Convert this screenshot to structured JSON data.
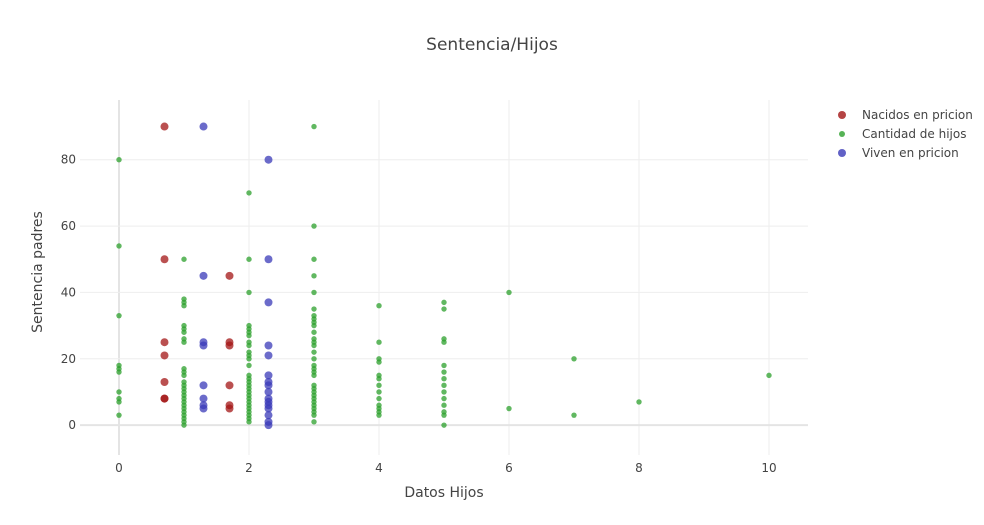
{
  "chart_data": {
    "type": "scatter",
    "title": "Sentencia/Hijos",
    "xlabel": "Datos Hijos",
    "ylabel": "Sentencia padres",
    "xlim": [
      -0.6,
      10.6
    ],
    "ylim": [
      -9,
      98
    ],
    "x_ticks": [
      0,
      2,
      4,
      6,
      8,
      10
    ],
    "y_ticks": [
      0,
      20,
      40,
      60,
      80
    ],
    "grid": true,
    "legend_position": "top-right",
    "series": [
      {
        "name": "Nacidos en pricion",
        "color": "#a31515",
        "marker_size": "large",
        "points": [
          [
            0.7,
            90
          ],
          [
            0.7,
            50
          ],
          [
            0.7,
            25
          ],
          [
            0.7,
            21
          ],
          [
            0.7,
            13
          ],
          [
            0.7,
            8
          ],
          [
            0.7,
            8
          ],
          [
            1.7,
            45
          ],
          [
            1.7,
            25
          ],
          [
            1.7,
            24
          ],
          [
            1.7,
            12
          ],
          [
            1.7,
            6
          ],
          [
            1.7,
            5
          ]
        ]
      },
      {
        "name": "Cantidad de hijos",
        "color": "#2ca02c",
        "marker_size": "small",
        "points": [
          [
            0,
            80
          ],
          [
            0,
            54
          ],
          [
            0,
            33
          ],
          [
            0,
            18
          ],
          [
            0,
            17
          ],
          [
            0,
            16
          ],
          [
            0,
            10
          ],
          [
            0,
            8
          ],
          [
            0,
            7
          ],
          [
            0,
            3
          ],
          [
            1,
            50
          ],
          [
            1,
            38
          ],
          [
            1,
            37
          ],
          [
            1,
            36
          ],
          [
            1,
            30
          ],
          [
            1,
            29
          ],
          [
            1,
            28
          ],
          [
            1,
            26
          ],
          [
            1,
            25
          ],
          [
            1,
            17
          ],
          [
            1,
            16
          ],
          [
            1,
            15
          ],
          [
            1,
            13
          ],
          [
            1,
            12
          ],
          [
            1,
            11
          ],
          [
            1,
            10
          ],
          [
            1,
            9
          ],
          [
            1,
            8
          ],
          [
            1,
            7
          ],
          [
            1,
            6
          ],
          [
            1,
            5
          ],
          [
            1,
            4
          ],
          [
            1,
            3
          ],
          [
            1,
            2
          ],
          [
            1,
            1
          ],
          [
            1,
            0
          ],
          [
            2,
            70
          ],
          [
            2,
            50
          ],
          [
            2,
            40
          ],
          [
            2,
            30
          ],
          [
            2,
            29
          ],
          [
            2,
            28
          ],
          [
            2,
            27
          ],
          [
            2,
            25
          ],
          [
            2,
            24
          ],
          [
            2,
            22
          ],
          [
            2,
            21
          ],
          [
            2,
            20
          ],
          [
            2,
            18
          ],
          [
            2,
            15
          ],
          [
            2,
            14
          ],
          [
            2,
            13
          ],
          [
            2,
            12
          ],
          [
            2,
            11
          ],
          [
            2,
            10
          ],
          [
            2,
            9
          ],
          [
            2,
            8
          ],
          [
            2,
            7
          ],
          [
            2,
            6
          ],
          [
            2,
            5
          ],
          [
            2,
            4
          ],
          [
            2,
            3
          ],
          [
            2,
            2
          ],
          [
            2,
            1
          ],
          [
            3,
            90
          ],
          [
            3,
            60
          ],
          [
            3,
            50
          ],
          [
            3,
            45
          ],
          [
            3,
            40
          ],
          [
            3,
            35
          ],
          [
            3,
            33
          ],
          [
            3,
            32
          ],
          [
            3,
            31
          ],
          [
            3,
            30
          ],
          [
            3,
            28
          ],
          [
            3,
            26
          ],
          [
            3,
            25
          ],
          [
            3,
            24
          ],
          [
            3,
            22
          ],
          [
            3,
            20
          ],
          [
            3,
            18
          ],
          [
            3,
            17
          ],
          [
            3,
            16
          ],
          [
            3,
            15
          ],
          [
            3,
            12
          ],
          [
            3,
            11
          ],
          [
            3,
            10
          ],
          [
            3,
            9
          ],
          [
            3,
            8
          ],
          [
            3,
            7
          ],
          [
            3,
            6
          ],
          [
            3,
            5
          ],
          [
            3,
            4
          ],
          [
            3,
            3
          ],
          [
            3,
            1
          ],
          [
            4,
            36
          ],
          [
            4,
            25
          ],
          [
            4,
            20
          ],
          [
            4,
            19
          ],
          [
            4,
            15
          ],
          [
            4,
            14
          ],
          [
            4,
            12
          ],
          [
            4,
            10
          ],
          [
            4,
            8
          ],
          [
            4,
            6
          ],
          [
            4,
            5
          ],
          [
            4,
            4
          ],
          [
            4,
            3
          ],
          [
            5,
            37
          ],
          [
            5,
            35
          ],
          [
            5,
            26
          ],
          [
            5,
            25
          ],
          [
            5,
            18
          ],
          [
            5,
            16
          ],
          [
            5,
            14
          ],
          [
            5,
            12
          ],
          [
            5,
            10
          ],
          [
            5,
            8
          ],
          [
            5,
            6
          ],
          [
            5,
            4
          ],
          [
            5,
            3
          ],
          [
            5,
            0
          ],
          [
            6,
            40
          ],
          [
            6,
            5
          ],
          [
            7,
            20
          ],
          [
            7,
            3
          ],
          [
            8,
            7
          ],
          [
            10,
            15
          ]
        ]
      },
      {
        "name": "Viven en pricion",
        "color": "#3a3ab8",
        "marker_size": "large",
        "points": [
          [
            1.3,
            90
          ],
          [
            1.3,
            45
          ],
          [
            1.3,
            25
          ],
          [
            1.3,
            24
          ],
          [
            1.3,
            12
          ],
          [
            1.3,
            8
          ],
          [
            1.3,
            6
          ],
          [
            1.3,
            5
          ],
          [
            2.3,
            80
          ],
          [
            2.3,
            50
          ],
          [
            2.3,
            37
          ],
          [
            2.3,
            24
          ],
          [
            2.3,
            21
          ],
          [
            2.3,
            15
          ],
          [
            2.3,
            13
          ],
          [
            2.3,
            12
          ],
          [
            2.3,
            10
          ],
          [
            2.3,
            8
          ],
          [
            2.3,
            7
          ],
          [
            2.3,
            6
          ],
          [
            2.3,
            5
          ],
          [
            2.3,
            3
          ],
          [
            2.3,
            1
          ],
          [
            2.3,
            0
          ]
        ]
      }
    ]
  }
}
